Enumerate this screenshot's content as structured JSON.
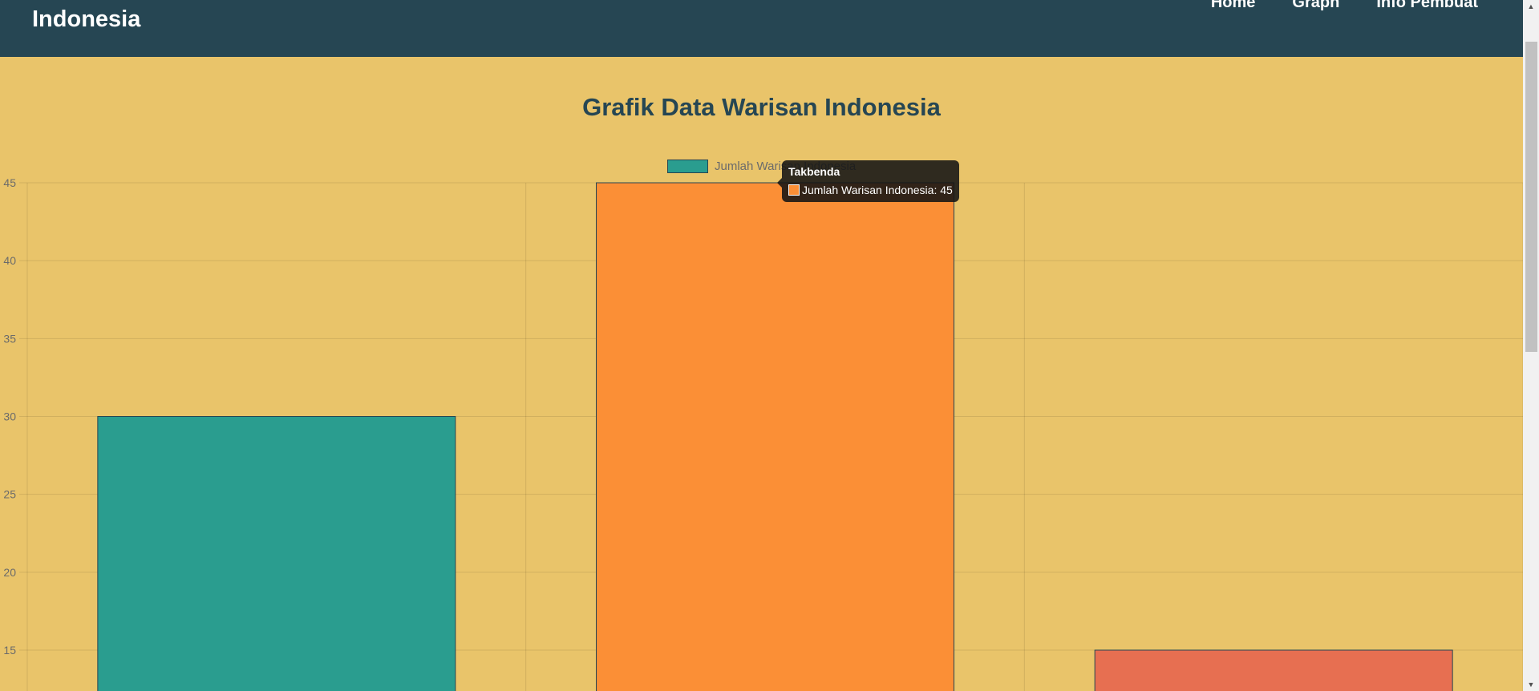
{
  "navbar": {
    "brand": "Indonesia",
    "links": [
      "Home",
      "Graph",
      "Info Pembuat"
    ]
  },
  "chart_data": {
    "type": "bar",
    "title": "Grafik Data Warisan Indonesia",
    "series": [
      {
        "name": "Jumlah Warisan Indonesia",
        "values": [
          30,
          45,
          15
        ]
      }
    ],
    "categories": [
      "",
      "Takbenda",
      ""
    ],
    "bar_colors": [
      "#2a9d8f",
      "#fb8f36",
      "#e76f51"
    ],
    "border_color": "#264653",
    "y_ticks": [
      45,
      40,
      35,
      30,
      25,
      20,
      15
    ],
    "ylim_visible": [
      15,
      45
    ],
    "grid": true,
    "legend_position": "top-center",
    "tooltip": {
      "title": "Takbenda",
      "text": "Jumlah Warisan Indonesia: 45",
      "color": "#fb8f36"
    }
  }
}
